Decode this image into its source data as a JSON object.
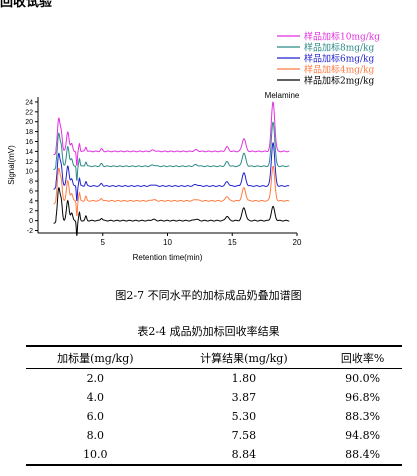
{
  "header": {
    "text": "回收试验"
  },
  "chart_data": {
    "type": "line",
    "annotation": "Melamine",
    "xlabel": "Retention time(min)",
    "ylabel": "Signal(mV)",
    "xlim": [
      0,
      20
    ],
    "ylim": [
      -2.5,
      25
    ],
    "x_ticks": [
      5,
      10,
      15,
      20
    ],
    "y_ticks": [
      -2,
      0,
      2,
      4,
      6,
      8,
      10,
      12,
      14,
      16,
      18,
      20,
      22,
      24
    ],
    "legend_position": "top-right",
    "series": [
      {
        "name": "样品加标10mg/kg",
        "color": "#e030e0",
        "baseline": 14,
        "melamine_height": 10.0
      },
      {
        "name": "样品加标8mg/kg",
        "color": "#2a8a86",
        "baseline": 11,
        "melamine_height": 9.0
      },
      {
        "name": "样品加标6mg/kg",
        "color": "#2020d0",
        "baseline": 7,
        "melamine_height": 8.8
      },
      {
        "name": "样品加标4mg/kg",
        "color": "#ff7a40",
        "baseline": 4,
        "melamine_height": 7.0
      },
      {
        "name": "样品加标2mg/kg",
        "color": "#000000",
        "baseline": 0,
        "melamine_height": 2.8
      }
    ]
  },
  "figure_caption": "图2-7    不同水平的加标成品奶叠加谱图",
  "table_caption": "表2-4    成品奶加标回收率结果",
  "table": {
    "headers": [
      "加标量(mg/kg)",
      "计算结果(mg/kg)",
      "回收率%"
    ],
    "rows": [
      [
        "2.0",
        "1.80",
        "90.0%"
      ],
      [
        "4.0",
        "3.87",
        "96.8%"
      ],
      [
        "6.0",
        "5.30",
        "88.3%"
      ],
      [
        "8.0",
        "7.58",
        "94.8%"
      ],
      [
        "10.0",
        "8.84",
        "88.4%"
      ]
    ]
  }
}
